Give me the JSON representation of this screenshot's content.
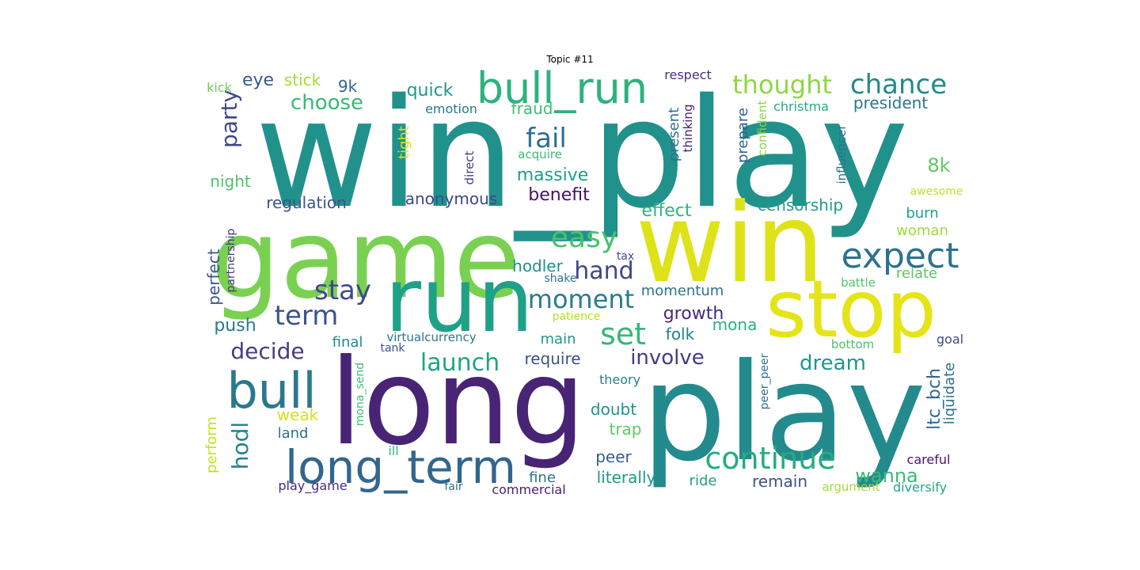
{
  "title": "Topic #11",
  "words": [
    {
      "text": "win_play",
      "color": "#21918c"
    },
    {
      "text": "game",
      "color": "#7ad151"
    },
    {
      "text": "win",
      "color": "#dde318"
    },
    {
      "text": "run",
      "color": "#1fa187"
    },
    {
      "text": "long",
      "color": "#482475"
    },
    {
      "text": "play",
      "color": "#238a8d"
    },
    {
      "text": "stop",
      "color": "#e5e419"
    },
    {
      "text": "bull_run",
      "color": "#2db27d"
    },
    {
      "text": "bull",
      "color": "#2a788e"
    },
    {
      "text": "long_term",
      "color": "#31668e"
    },
    {
      "text": "expect",
      "color": "#2c728e"
    },
    {
      "text": "thought",
      "color": "#8fd744"
    },
    {
      "text": "chance",
      "color": "#23898e"
    },
    {
      "text": "continue",
      "color": "#25ab82"
    },
    {
      "text": "easy",
      "color": "#4ac16d"
    },
    {
      "text": "moment",
      "color": "#287d8e"
    },
    {
      "text": "set",
      "color": "#35b779"
    },
    {
      "text": "stay",
      "color": "#3e4a89"
    },
    {
      "text": "term",
      "color": "#39558c"
    },
    {
      "text": "fail",
      "color": "#2d708e"
    },
    {
      "text": "hand",
      "color": "#404688"
    },
    {
      "text": "involve",
      "color": "#443a83"
    },
    {
      "text": "launch",
      "color": "#20a486"
    },
    {
      "text": "decide",
      "color": "#433e85"
    },
    {
      "text": "dream",
      "color": "#1f978b"
    },
    {
      "text": "hodl",
      "color": "#26828e"
    },
    {
      "text": "wanna",
      "color": "#3bbb75"
    },
    {
      "text": "party",
      "color": "#3f4788"
    },
    {
      "text": "choose",
      "color": "#38b977"
    },
    {
      "text": "quick",
      "color": "#1f988b"
    },
    {
      "text": "massive",
      "color": "#1f9e89"
    },
    {
      "text": "benefit",
      "color": "#471164"
    },
    {
      "text": "effect",
      "color": "#2fb47c"
    },
    {
      "text": "censorship",
      "color": "#1e9c89"
    },
    {
      "text": "president",
      "color": "#2b758e"
    },
    {
      "text": "8k",
      "color": "#5ec962"
    },
    {
      "text": "eye",
      "color": "#38598c"
    },
    {
      "text": "stick",
      "color": "#a5db36"
    },
    {
      "text": "9k",
      "color": "#32648e"
    },
    {
      "text": "fraud",
      "color": "#3dbc74"
    },
    {
      "text": "emotion",
      "color": "#2a768e"
    },
    {
      "text": "respect",
      "color": "#46307e"
    },
    {
      "text": "christma",
      "color": "#25ac82"
    },
    {
      "text": "kick",
      "color": "#6ece58"
    },
    {
      "text": "night",
      "color": "#4ec36b"
    },
    {
      "text": "regulation",
      "color": "#3b528b"
    },
    {
      "text": "anonymous",
      "color": "#3e4989"
    },
    {
      "text": "growth",
      "color": "#482878"
    },
    {
      "text": "momentum",
      "color": "#2c728e"
    },
    {
      "text": "push",
      "color": "#297b8e"
    },
    {
      "text": "perfect",
      "color": "#3a548c"
    },
    {
      "text": "partnership",
      "color": "#453781"
    },
    {
      "text": "folk",
      "color": "#277f8e"
    },
    {
      "text": "mona",
      "color": "#2ab07f"
    },
    {
      "text": "hodler",
      "color": "#218f8d"
    },
    {
      "text": "shake",
      "color": "#2e6f8e"
    },
    {
      "text": "tax",
      "color": "#3d4d8a"
    },
    {
      "text": "burn",
      "color": "#1fa088"
    },
    {
      "text": "woman",
      "color": "#9fda3a"
    },
    {
      "text": "relate",
      "color": "#5cc863"
    },
    {
      "text": "battle",
      "color": "#54c568"
    },
    {
      "text": "ltc_bch",
      "color": "#31688e"
    },
    {
      "text": "liquidate",
      "color": "#2e6e8e"
    },
    {
      "text": "require",
      "color": "#3c4f8a"
    },
    {
      "text": "main",
      "color": "#1f968b"
    },
    {
      "text": "final",
      "color": "#23898e"
    },
    {
      "text": "virtualcurrency",
      "color": "#2a788e"
    },
    {
      "text": "tank",
      "color": "#3b528b"
    },
    {
      "text": "patience",
      "color": "#b5de2b"
    },
    {
      "text": "doubt",
      "color": "#20928c"
    },
    {
      "text": "trap",
      "color": "#5ec962"
    },
    {
      "text": "peer",
      "color": "#355f8d"
    },
    {
      "text": "literally",
      "color": "#1f988b"
    },
    {
      "text": "remain",
      "color": "#3b528b"
    },
    {
      "text": "ride",
      "color": "#1fa188"
    },
    {
      "text": "fine",
      "color": "#2a768e"
    },
    {
      "text": "fair",
      "color": "#2c718e"
    },
    {
      "text": "commercial",
      "color": "#481f70"
    },
    {
      "text": "play_game",
      "color": "#472d7b"
    },
    {
      "text": "land",
      "color": "#2b748e"
    },
    {
      "text": "weak",
      "color": "#d2e21b"
    },
    {
      "text": "ill",
      "color": "#35b779"
    },
    {
      "text": "perform",
      "color": "#c8e020"
    },
    {
      "text": "mona_send",
      "color": "#40bd72"
    },
    {
      "text": "theory",
      "color": "#26818e"
    },
    {
      "text": "bottom",
      "color": "#4ac16d"
    },
    {
      "text": "goal",
      "color": "#3f4889"
    },
    {
      "text": "careful",
      "color": "#481769"
    },
    {
      "text": "argument",
      "color": "#a8db34"
    },
    {
      "text": "diversify",
      "color": "#22a884"
    },
    {
      "text": "peer_peer",
      "color": "#2c728e"
    },
    {
      "text": "awesome",
      "color": "#c0df25"
    },
    {
      "text": "influencer",
      "color": "#2c728e"
    },
    {
      "text": "confident",
      "color": "#8bd646"
    },
    {
      "text": "prepare",
      "color": "#34618d"
    },
    {
      "text": "thinking",
      "color": "#482173"
    },
    {
      "text": "present",
      "color": "#2c728e"
    },
    {
      "text": "direct",
      "color": "#433d84"
    },
    {
      "text": "acquire",
      "color": "#3dbc74"
    },
    {
      "text": "tight",
      "color": "#d8e219"
    }
  ]
}
